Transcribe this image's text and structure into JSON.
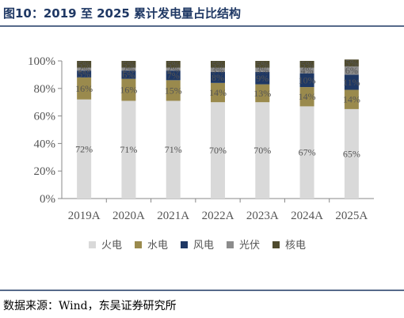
{
  "title": "图10：2019 至 2025 累计发电量占比结构",
  "source": "数据来源：Wind，东吴证券研究所",
  "colors": {
    "title": "#1f3864",
    "rule": "#1f3864",
    "火电": "#d9d9d9",
    "水电": "#9a8a4d",
    "风电": "#1f3864",
    "光伏": "#8c8c8c",
    "核电": "#4f4b2e"
  },
  "chart_data": {
    "type": "bar",
    "stacked": true,
    "categories": [
      "2019A",
      "2020A",
      "2021A",
      "2022A",
      "2023A",
      "2024A",
      "2025A"
    ],
    "series": [
      {
        "name": "火电",
        "values": [
          72,
          71,
          71,
          70,
          70,
          67,
          65
        ],
        "labels": [
          "72%",
          "71%",
          "71%",
          "70%",
          "70%",
          "67%",
          "65%"
        ]
      },
      {
        "name": "水电",
        "values": [
          16,
          16,
          15,
          14,
          13,
          14,
          14
        ],
        "labels": [
          "16%",
          "16%",
          "15%",
          "14%",
          "13%",
          "14%",
          "14%"
        ]
      },
      {
        "name": "风电",
        "values": [
          5,
          6,
          7,
          8,
          9,
          10,
          11
        ],
        "labels": [
          "5%",
          "6%",
          "7%",
          "8%",
          "9%",
          "10%",
          "11%"
        ]
      },
      {
        "name": "光伏",
        "values": [
          2,
          2,
          2,
          3,
          3,
          4,
          6
        ],
        "labels": [
          "2%",
          "2%",
          "2%",
          "3%",
          "3%",
          "4%",
          "6%"
        ]
      },
      {
        "name": "核电",
        "values": [
          5,
          5,
          5,
          5,
          5,
          5,
          5
        ],
        "labels": [
          "5%",
          "5%",
          "5%",
          "5%",
          "5%",
          "5%",
          "5%"
        ]
      }
    ],
    "ylim": [
      0,
      100
    ],
    "yticks": [
      "0%",
      "20%",
      "40%",
      "60%",
      "80%",
      "100%"
    ],
    "legend_position": "bottom",
    "grid": false
  }
}
